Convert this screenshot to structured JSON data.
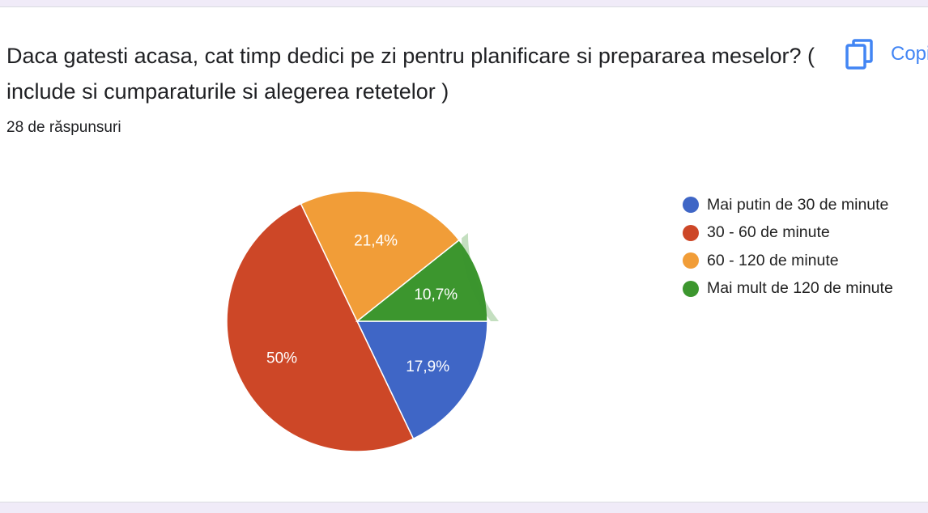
{
  "question": {
    "title": "Daca gatesti acasa, cat timp dedici pe zi pentru planificare si prepararea meselor? ( include si cumparaturile si alegerea retetelor )",
    "responses": "28 de răspunsuri"
  },
  "toolbar": {
    "copy_label": "Copiați",
    "copy_icon": "copy-icon"
  },
  "chart_data": {
    "type": "pie",
    "title": "",
    "total_responses": 28,
    "slices": [
      {
        "name": "Mai putin de 30 de minute",
        "value": 17.9,
        "label": "17,9%",
        "color": "#3f66c6"
      },
      {
        "name": "30 - 60 de minute",
        "value": 50,
        "label": "50%",
        "color": "#cd4727"
      },
      {
        "name": "60 - 120 de minute",
        "value": 21.4,
        "label": "21,4%",
        "color": "#f19d38"
      },
      {
        "name": "Mai mult de 120 de minute",
        "value": 10.7,
        "label": "10,7%",
        "color": "#3c962e"
      }
    ],
    "highlighted_slice": "Mai mult de 120 de minute",
    "legend_position": "right"
  }
}
